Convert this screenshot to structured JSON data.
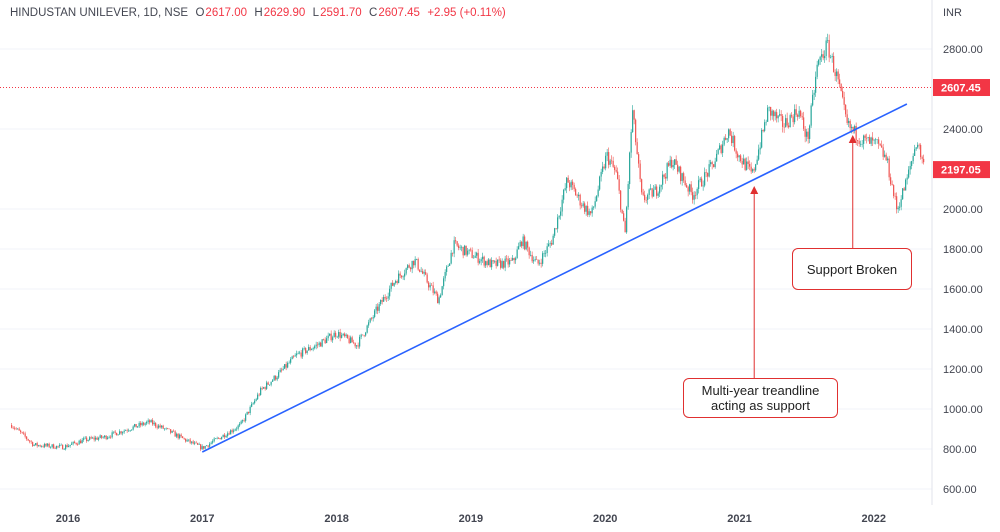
{
  "header": {
    "symbol": "HINDUSTAN UNILEVER, 1D, NSE",
    "o_label": "O",
    "o": "2617.00",
    "h_label": "H",
    "h": "2629.90",
    "l_label": "L",
    "l": "2591.70",
    "c_label": "C",
    "c": "2607.45",
    "change": "+2.95 (+0.11%)"
  },
  "chart_data": {
    "type": "candlestick",
    "currency": "INR",
    "y_ticks": [
      "2800.00",
      "2400.00",
      "2000.00",
      "1800.00",
      "1600.00",
      "1400.00",
      "1200.00",
      "1000.00",
      "800.00",
      "600.00"
    ],
    "y_tick_values": [
      2800,
      2400,
      2000,
      1800,
      1600,
      1400,
      1200,
      1000,
      800,
      600
    ],
    "ylim": [
      560,
      2880
    ],
    "x_ticks": [
      "2016",
      "2017",
      "2018",
      "2019",
      "2020",
      "2021",
      "2022"
    ],
    "xlim": [
      "2015-08-01",
      "2022-05-20"
    ],
    "price_path": [
      [
        "2015-08-01",
        920
      ],
      [
        "2015-10-01",
        820
      ],
      [
        "2015-12-20",
        810
      ],
      [
        "2016-02-15",
        845
      ],
      [
        "2016-04-10",
        860
      ],
      [
        "2016-06-20",
        905
      ],
      [
        "2016-08-10",
        935
      ],
      [
        "2016-09-25",
        895
      ],
      [
        "2016-11-15",
        845
      ],
      [
        "2017-01-01",
        805
      ],
      [
        "2017-02-20",
        860
      ],
      [
        "2017-04-15",
        920
      ],
      [
        "2017-06-10",
        1095
      ],
      [
        "2017-07-25",
        1170
      ],
      [
        "2017-09-15",
        1270
      ],
      [
        "2017-11-10",
        1320
      ],
      [
        "2018-01-01",
        1380
      ],
      [
        "2018-02-25",
        1320
      ],
      [
        "2018-04-20",
        1495
      ],
      [
        "2018-06-10",
        1645
      ],
      [
        "2018-08-01",
        1745
      ],
      [
        "2018-09-10",
        1620
      ],
      [
        "2018-10-05",
        1545
      ],
      [
        "2018-11-15",
        1820
      ],
      [
        "2019-01-05",
        1770
      ],
      [
        "2019-03-01",
        1720
      ],
      [
        "2019-04-25",
        1735
      ],
      [
        "2019-05-20",
        1845
      ],
      [
        "2019-07-01",
        1720
      ],
      [
        "2019-08-10",
        1845
      ],
      [
        "2019-09-20",
        2145
      ],
      [
        "2019-11-01",
        2020
      ],
      [
        "2019-11-25",
        1970
      ],
      [
        "2020-01-05",
        2270
      ],
      [
        "2020-02-01",
        2170
      ],
      [
        "2020-02-24",
        1870
      ],
      [
        "2020-03-15",
        2495
      ],
      [
        "2020-04-10",
        2045
      ],
      [
        "2020-05-20",
        2095
      ],
      [
        "2020-07-01",
        2245
      ],
      [
        "2020-08-25",
        2070
      ],
      [
        "2020-10-20",
        2220
      ],
      [
        "2020-12-01",
        2395
      ],
      [
        "2020-12-28",
        2270
      ],
      [
        "2021-02-05",
        2170
      ],
      [
        "2021-03-20",
        2495
      ],
      [
        "2021-05-01",
        2420
      ],
      [
        "2021-06-10",
        2495
      ],
      [
        "2021-07-05",
        2345
      ],
      [
        "2021-08-01",
        2720
      ],
      [
        "2021-08-28",
        2820
      ],
      [
        "2021-09-25",
        2645
      ],
      [
        "2021-10-20",
        2420
      ],
      [
        "2021-12-01",
        2345
      ],
      [
        "2022-01-10",
        2320
      ],
      [
        "2022-02-05",
        2245
      ],
      [
        "2022-03-05",
        1995
      ],
      [
        "2022-04-01",
        2145
      ],
      [
        "2022-04-28",
        2345
      ],
      [
        "2022-05-20",
        2197.05
      ]
    ],
    "last_price": "2197.05",
    "marked_price": "2607.45",
    "trendline": {
      "start": [
        "2017-01-01",
        785
      ],
      "end": [
        "2022-04-01",
        2525
      ],
      "color": "#2962ff"
    },
    "up_color": "#26a69a",
    "down_color": "#ef5350",
    "annotations": [
      {
        "text": "Support Broken",
        "arrow_at": [
          "2021-11-05",
          2370
        ]
      },
      {
        "text": "Multi-year treandline acting as support",
        "arrow_at": [
          "2021-02-10",
          2115
        ]
      }
    ]
  }
}
